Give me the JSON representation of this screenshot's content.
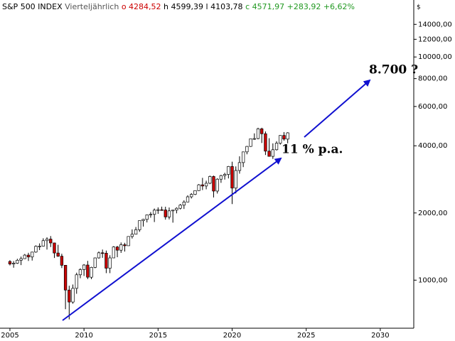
{
  "chart_data": {
    "type": "candlestick",
    "header": {
      "title": "S&P 500 INDEX",
      "period": "Vierteljährlich",
      "open": "o 4284,52",
      "high": "h 4599,39",
      "low": "l 4103,78",
      "close": "c 4571,97",
      "change": "+283,92",
      "change_pct": "+6,62%"
    },
    "currency": "$",
    "annotations": {
      "growth": "11 % p.a.",
      "target": "8.700 ?"
    },
    "log_scale": true,
    "up_color": "#ffffff",
    "down_color": "#cc0000",
    "arrow_color": "#1010d0",
    "xlim": [
      2004.33,
      2032.26
    ],
    "xticks": [
      2005,
      2010,
      2015,
      2020,
      2025,
      2030
    ],
    "ylim": [
      609,
      18000
    ],
    "yticks": [
      {
        "value": 1000,
        "label": "1000,00"
      },
      {
        "value": 2000,
        "label": "2000,00"
      },
      {
        "value": 4000,
        "label": "4000,00"
      },
      {
        "value": 6000,
        "label": "6000,00"
      },
      {
        "value": 8000,
        "label": "8000,00"
      },
      {
        "value": 10000,
        "label": "10000,00"
      },
      {
        "value": 12000,
        "label": "12000,00"
      },
      {
        "value": 14000,
        "label": "14000,00"
      }
    ],
    "x": [
      2005,
      2005.25,
      2005.5,
      2005.75,
      2006,
      2006.25,
      2006.5,
      2006.75,
      2007,
      2007.25,
      2007.5,
      2007.75,
      2008,
      2008.25,
      2008.5,
      2008.75,
      2009,
      2009.25,
      2009.5,
      2009.75,
      2010,
      2010.25,
      2010.5,
      2010.75,
      2011,
      2011.25,
      2011.5,
      2011.75,
      2012,
      2012.25,
      2012.5,
      2012.75,
      2013,
      2013.25,
      2013.5,
      2013.75,
      2014,
      2014.25,
      2014.5,
      2014.75,
      2015,
      2015.25,
      2015.5,
      2015.75,
      2016,
      2016.25,
      2016.5,
      2016.75,
      2017,
      2017.25,
      2017.5,
      2017.75,
      2018,
      2018.25,
      2018.5,
      2018.75,
      2019,
      2019.25,
      2019.5,
      2019.75,
      2020,
      2020.25,
      2020.5,
      2020.75,
      2021,
      2021.25,
      2021.5,
      2021.75,
      2022,
      2022.25,
      2022.5,
      2022.75,
      2023,
      2023.25,
      2023.5,
      2023.75
    ],
    "open": [
      1212,
      1181,
      1191,
      1228,
      1248,
      1295,
      1270,
      1336,
      1418,
      1421,
      1503,
      1527,
      1468,
      1323,
      1280,
      1166,
      903,
      798,
      919,
      1057,
      1115,
      1169,
      1031,
      1141,
      1258,
      1326,
      1321,
      1131,
      1258,
      1408,
      1362,
      1441,
      1426,
      1569,
      1606,
      1682,
      1848,
      1872,
      1960,
      1972,
      2059,
      2068,
      2063,
      1920,
      2044,
      2060,
      2099,
      2168,
      2239,
      2363,
      2423,
      2519,
      2674,
      2641,
      2718,
      2914,
      2507,
      2834,
      2942,
      2977,
      3231,
      2585,
      3100,
      3363,
      3756,
      3973,
      4298,
      4308,
      4766,
      4530,
      3785,
      3586,
      3840,
      4109,
      4450,
      4284.52
    ],
    "high": [
      1229,
      1217,
      1246,
      1275,
      1310,
      1326,
      1340,
      1431,
      1461,
      1540,
      1556,
      1576,
      1471,
      1440,
      1313,
      1167,
      944,
      956,
      1080,
      1130,
      1180,
      1220,
      1148,
      1263,
      1344,
      1371,
      1357,
      1293,
      1420,
      1423,
      1475,
      1470,
      1573,
      1688,
      1730,
      1849,
      1883,
      1968,
      2019,
      2094,
      2119,
      2135,
      2133,
      2116,
      2044,
      2120,
      2194,
      2278,
      2401,
      2454,
      2520,
      2695,
      2873,
      2791,
      2941,
      2940,
      2861,
      2964,
      3028,
      3247,
      3394,
      3233,
      3588,
      3760,
      3994,
      4302,
      4546,
      4818,
      4819,
      4637,
      4325,
      4101,
      4195,
      4458,
      4607,
      4599.39
    ],
    "low": [
      1164,
      1137,
      1183,
      1168,
      1245,
      1219,
      1224,
      1327,
      1364,
      1416,
      1371,
      1407,
      1257,
      1272,
      1133,
      741,
      667,
      784,
      869,
      1020,
      1044,
      1011,
      1010,
      1131,
      1249,
      1259,
      1075,
      1075,
      1258,
      1267,
      1325,
      1343,
      1426,
      1536,
      1605,
      1646,
      1738,
      1814,
      1905,
      1821,
      1981,
      2048,
      1867,
      1872,
      1810,
      1992,
      2074,
      2084,
      2245,
      2322,
      2406,
      2510,
      2533,
      2553,
      2692,
      2347,
      2444,
      2729,
      2822,
      2856,
      2192,
      2447,
      3000,
      3210,
      3663,
      3954,
      4252,
      4279,
      4115,
      3637,
      3585,
      3492,
      3809,
      4048,
      4216,
      4103.78
    ],
    "close": [
      1181,
      1191,
      1228,
      1248,
      1295,
      1270,
      1336,
      1418,
      1421,
      1503,
      1527,
      1468,
      1323,
      1280,
      1166,
      903,
      798,
      919,
      1057,
      1115,
      1169,
      1031,
      1141,
      1258,
      1326,
      1321,
      1131,
      1258,
      1408,
      1362,
      1441,
      1426,
      1569,
      1606,
      1682,
      1848,
      1872,
      1960,
      1972,
      2059,
      2068,
      2063,
      1920,
      2044,
      2060,
      2099,
      2168,
      2239,
      2363,
      2423,
      2519,
      2674,
      2641,
      2718,
      2914,
      2507,
      2834,
      2942,
      2977,
      3231,
      2585,
      3100,
      3363,
      3756,
      3973,
      4298,
      4308,
      4766,
      4530,
      3785,
      3586,
      3840,
      4109,
      4450,
      4288,
      4571.97
    ]
  }
}
